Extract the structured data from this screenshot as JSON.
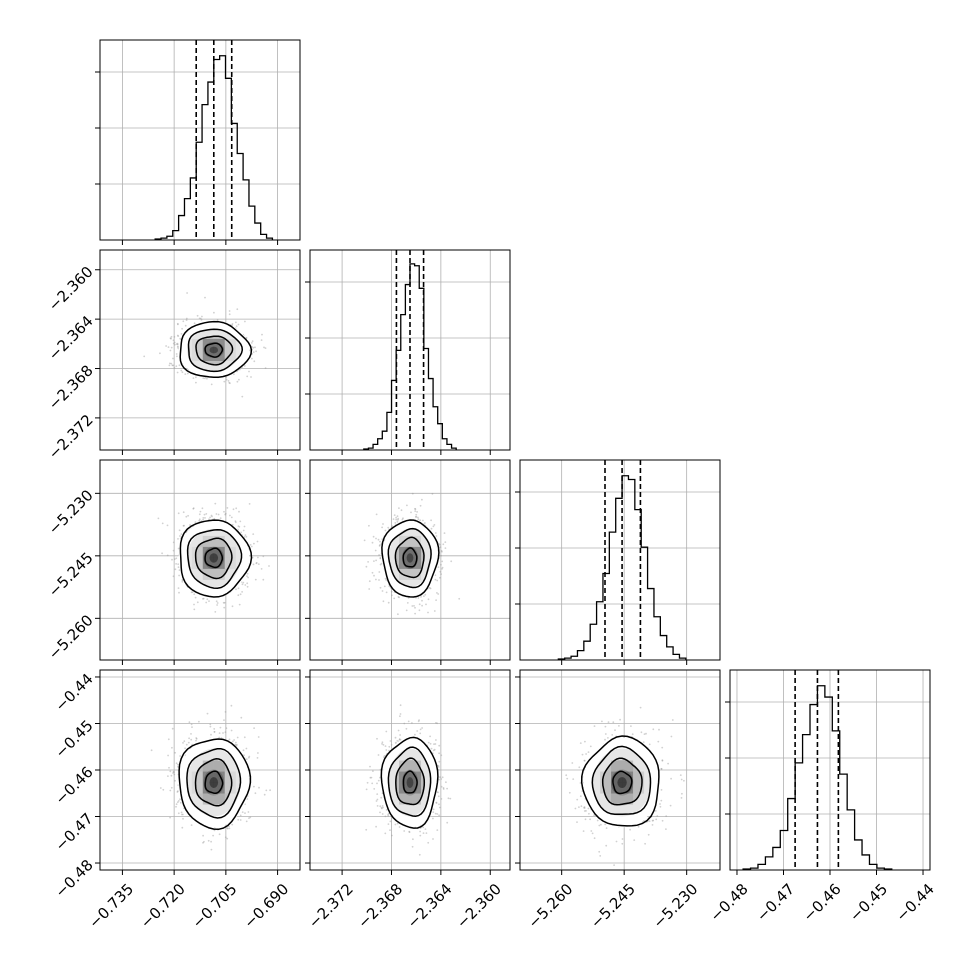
{
  "chart_data": {
    "type": "corner",
    "params": [
      {
        "mean": -0.7085,
        "sigma": 0.005,
        "quantiles": [
          -0.7136,
          -0.7085,
          -0.7033
        ],
        "range": [
          -0.7415,
          -0.6835
        ],
        "ticks": [
          "−0.735",
          "−0.720",
          "−0.705",
          "−0.690"
        ],
        "tickvals": [
          -0.735,
          -0.72,
          -0.705,
          -0.69
        ]
      },
      {
        "mean": -2.3665,
        "sigma": 0.0011,
        "quantiles": [
          -2.3676,
          -2.3665,
          -2.3654
        ],
        "range": [
          -2.3746,
          -2.3584
        ],
        "ticks": [
          "−2.372",
          "−2.368",
          "−2.364",
          "−2.360"
        ],
        "tickvals": [
          -2.372,
          -2.368,
          -2.364,
          -2.36
        ]
      },
      {
        "mean": -5.2455,
        "sigma": 0.0045,
        "quantiles": [
          -5.2496,
          -5.2455,
          -5.2411
        ],
        "range": [
          -5.27,
          -5.222
        ],
        "ticks": [
          "−5.260",
          "−5.245",
          "−5.230"
        ],
        "tickvals": [
          -5.26,
          -5.245,
          -5.23
        ]
      },
      {
        "mean": -0.4627,
        "sigma": 0.0047,
        "quantiles": [
          -0.4675,
          -0.4627,
          -0.4582
        ],
        "range": [
          -0.4815,
          -0.4385
        ],
        "ticks": [
          "−0.48",
          "−0.47",
          "−0.46",
          "−0.45",
          "−0.44"
        ],
        "tickvals": [
          -0.48,
          -0.47,
          -0.46,
          -0.45,
          -0.44
        ]
      }
    ],
    "histograms": [
      [
        0.005,
        0.01,
        0.02,
        0.05,
        0.13,
        0.22,
        0.33,
        0.52,
        0.72,
        0.84,
        0.96,
        0.98,
        0.86,
        0.62,
        0.46,
        0.32,
        0.18,
        0.09,
        0.03,
        0.01
      ],
      [
        0.005,
        0.01,
        0.03,
        0.06,
        0.1,
        0.2,
        0.37,
        0.53,
        0.72,
        0.88,
        0.99,
        0.98,
        0.86,
        0.54,
        0.38,
        0.23,
        0.14,
        0.06,
        0.03,
        0.01
      ],
      [
        0.005,
        0.01,
        0.02,
        0.05,
        0.1,
        0.19,
        0.31,
        0.46,
        0.68,
        0.86,
        0.98,
        0.96,
        0.8,
        0.6,
        0.38,
        0.23,
        0.13,
        0.07,
        0.03,
        0.01
      ],
      [
        0.005,
        0.01,
        0.03,
        0.07,
        0.12,
        0.21,
        0.38,
        0.57,
        0.72,
        0.88,
        0.98,
        0.92,
        0.74,
        0.51,
        0.32,
        0.16,
        0.08,
        0.03,
        0.01,
        0.005
      ]
    ],
    "grid": true,
    "bins": 20
  }
}
